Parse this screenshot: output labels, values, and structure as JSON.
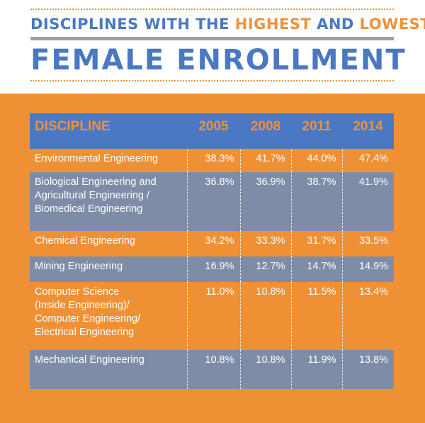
{
  "header": {
    "title_part1": "DISCIPLINES WITH THE ",
    "title_highlight1": "HIGHEST",
    "title_part2": " AND ",
    "title_highlight2": "LOWEST",
    "title_line2": "FEMALE ENROLLMENT"
  },
  "colors": {
    "blue": "#4a78c2",
    "orange": "#ef9035",
    "slate": "#7e8ca8",
    "gray_rule": "#9aa0a8"
  },
  "chart_data": {
    "type": "table",
    "columns": [
      "DISCIPLINE",
      "2005",
      "2008",
      "2011",
      "2014"
    ],
    "rows": [
      {
        "lines": [
          "Environmental Engineering"
        ],
        "values": [
          "38.3%",
          "41.7%",
          "44.0%",
          "47.4%"
        ]
      },
      {
        "lines": [
          "Biological Engineering and",
          "Agricultural Engineering /",
          "Biomedical Engineering"
        ],
        "values": [
          "36.8%",
          "36.9%",
          "38.7%",
          "41.9%"
        ]
      },
      {
        "lines": [
          "Chemical Engineering"
        ],
        "values": [
          "34.2%",
          "33.3%",
          "31.7%",
          "33.5%"
        ]
      },
      {
        "lines": [
          "Mining Engineering"
        ],
        "values": [
          "16.9%",
          "12.7%",
          "14.7%",
          "14.9%"
        ]
      },
      {
        "lines": [
          "Computer Science",
          "(Inside Engineering)/",
          "Computer Engineering/",
          "Electrical Engineering"
        ],
        "values": [
          "11.0%",
          "10.8%",
          "11.5%",
          "13.4%"
        ]
      },
      {
        "lines": [
          "Mechanical Engineering"
        ],
        "values": [
          "10.8%",
          "10.8%",
          "11.9%",
          "13.8%"
        ]
      }
    ]
  }
}
